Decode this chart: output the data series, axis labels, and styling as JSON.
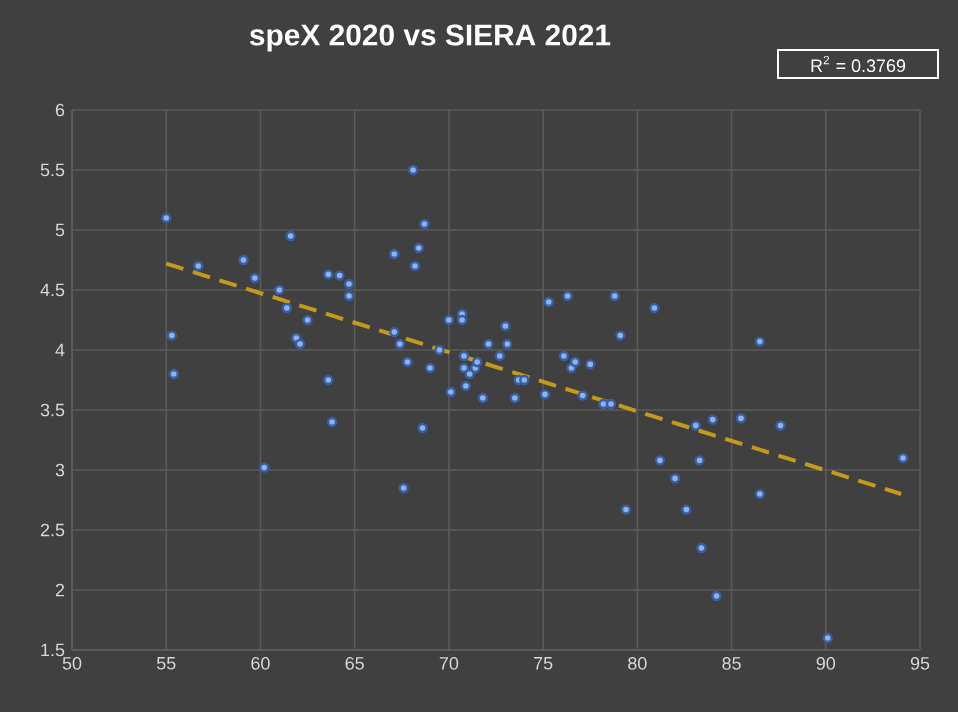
{
  "chart_data": {
    "type": "scatter",
    "title": "speX 2020 vs SIERA 2021",
    "annotations": [
      "R$^{2}$ = 0.3769"
    ],
    "xlim": [
      50,
      95
    ],
    "xticks": [
      50,
      55,
      60,
      65,
      70,
      75,
      80,
      85,
      90,
      95
    ],
    "ylim": [
      1.5,
      6
    ],
    "yticks": [
      1.5,
      2,
      2.5,
      3,
      3.5,
      4,
      4.5,
      5,
      5.5,
      6
    ],
    "grid": true,
    "series": [
      {
        "color": "#8ab4f0",
        "marker": "circle",
        "x": [
          55,
          55.3,
          55.4,
          56.7,
          59.1,
          59.7,
          60.2,
          61,
          61.4,
          61.6,
          61.9,
          62.1,
          62.5,
          63.6,
          63.6,
          63.8,
          64.2,
          64.7,
          64.7,
          67.1,
          67.1,
          67.4,
          67.6,
          67.8,
          68.1,
          68.2,
          68.4,
          68.6,
          68.7,
          69,
          69.5,
          70,
          70.1,
          70.7,
          70.7,
          70.8,
          70.8,
          70.9,
          71.1,
          71.4,
          71.5,
          71.8,
          72.1,
          72.7,
          73,
          73.1,
          73.5,
          73.7,
          74,
          75.1,
          75.3,
          76.1,
          76.3,
          76.5,
          76.7,
          77.1,
          77.5,
          78.2,
          78.6,
          78.8,
          79.1,
          79.4,
          80.9,
          81.2,
          82,
          82.6,
          83.1,
          83.3,
          83.4,
          84,
          84.2,
          85.5,
          86.5,
          86.5,
          87.6,
          90.1,
          94.1
        ],
        "values": [
          5.1,
          4.12,
          3.8,
          4.7,
          4.75,
          4.6,
          3.02,
          4.5,
          4.35,
          4.95,
          4.1,
          4.05,
          4.25,
          4.63,
          3.75,
          3.4,
          4.62,
          4.55,
          4.45,
          4.8,
          4.15,
          4.05,
          2.85,
          3.9,
          5.5,
          4.7,
          4.85,
          3.35,
          5.05,
          3.85,
          4.0,
          4.25,
          3.65,
          4.3,
          4.25,
          3.85,
          3.95,
          3.7,
          3.8,
          3.85,
          3.9,
          3.6,
          4.05,
          3.95,
          4.2,
          4.05,
          3.6,
          3.75,
          3.75,
          3.63,
          4.4,
          3.95,
          4.45,
          3.85,
          3.9,
          3.62,
          3.88,
          3.55,
          3.55,
          4.45,
          4.12,
          2.67,
          4.35,
          3.08,
          2.93,
          2.67,
          3.37,
          3.08,
          2.35,
          3.42,
          1.95,
          3.43,
          2.8,
          4.07,
          3.37,
          1.6,
          3.1
        ]
      },
      {
        "type": "line",
        "color": "#c49a1c",
        "line_style": "dashed",
        "marker": "none",
        "x": [
          55,
          94
        ],
        "values": [
          4.72,
          2.8
        ]
      }
    ]
  }
}
